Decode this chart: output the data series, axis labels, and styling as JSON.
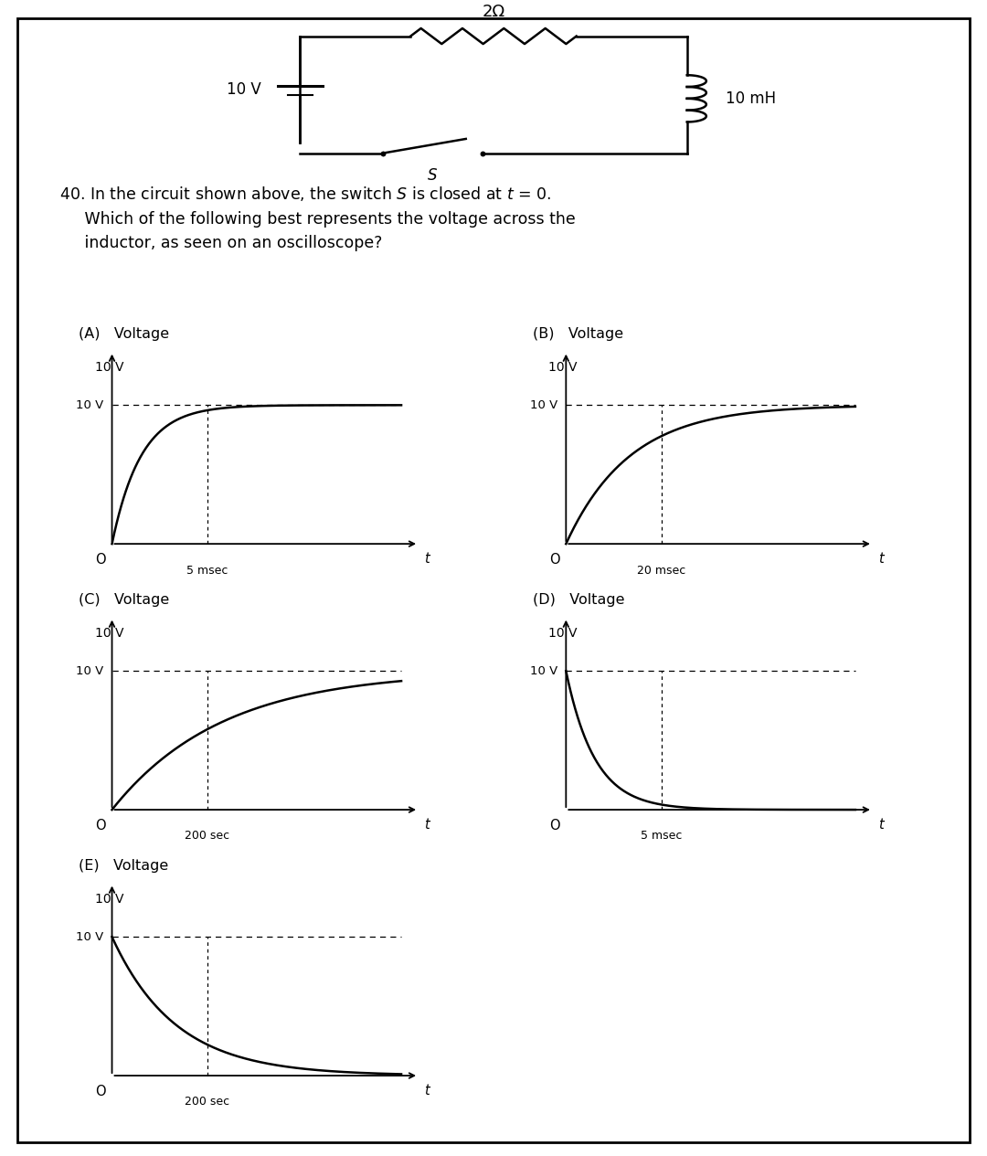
{
  "bg_color": "#ffffff",
  "border_color": "#000000",
  "circuit": {
    "resistor_label": "2Ω",
    "voltage_label": "10 V",
    "inductor_label": "10 mH",
    "switch_label": "S"
  },
  "question_line1": "40. In the circuit shown above, the switch  S  is closed at  t = 0.",
  "question_line2": "    Which of the following best represents the voltage across the",
  "question_line3": "    inductor, as seen on an oscilloscope?",
  "plots": [
    {
      "label": "(A)",
      "ylabel": "Voltage",
      "yval": "10 V",
      "xlabel_tick": "5 msec",
      "curve_type": "rising_exponential",
      "tau": 0.1
    },
    {
      "label": "(B)",
      "ylabel": "Voltage",
      "yval": "10 V",
      "xlabel_tick": "20 msec",
      "curve_type": "rising_exponential",
      "tau": 0.22
    },
    {
      "label": "(C)",
      "ylabel": "Voltage",
      "yval": "10 V",
      "xlabel_tick": "200 sec",
      "curve_type": "rising_exponential",
      "tau": 0.38
    },
    {
      "label": "(D)",
      "ylabel": "Voltage",
      "yval": "10 V",
      "xlabel_tick": "5 msec",
      "curve_type": "falling_exponential",
      "tau": 0.1
    },
    {
      "label": "(E)",
      "ylabel": "Voltage",
      "yval": "10 V",
      "xlabel_tick": "200 sec",
      "curve_type": "falling_exponential",
      "tau": 0.22
    }
  ]
}
